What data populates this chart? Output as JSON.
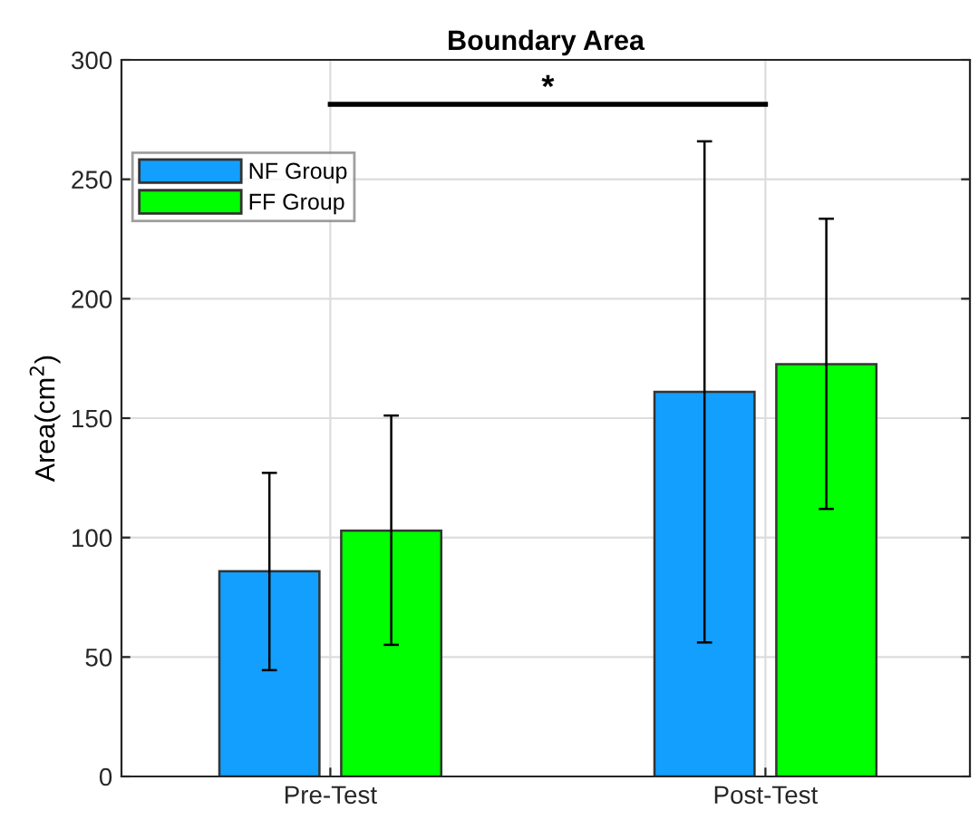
{
  "chart_data": {
    "type": "bar",
    "title": "Boundary Area",
    "ylabel": "Area(cm$^{2}$)",
    "categories": [
      "Pre-Test",
      "Post-Test"
    ],
    "series": [
      {
        "name": "NF Group",
        "color": "#129ffe",
        "values": [
          85.9,
          161.0
        ],
        "errors": [
          [
            44.5,
            127.1
          ],
          [
            56.1,
            265.9
          ]
        ]
      },
      {
        "name": "FF Group",
        "color": "#00ff00",
        "values": [
          102.9,
          172.6
        ],
        "errors": [
          [
            55.1,
            151.1
          ],
          [
            112.0,
            233.5
          ]
        ]
      }
    ],
    "ylim": [
      0,
      300
    ],
    "yticks": [
      0,
      50,
      100,
      150,
      200,
      250,
      300
    ],
    "annotations": [
      "*"
    ],
    "grid": true,
    "legend": "top left"
  }
}
